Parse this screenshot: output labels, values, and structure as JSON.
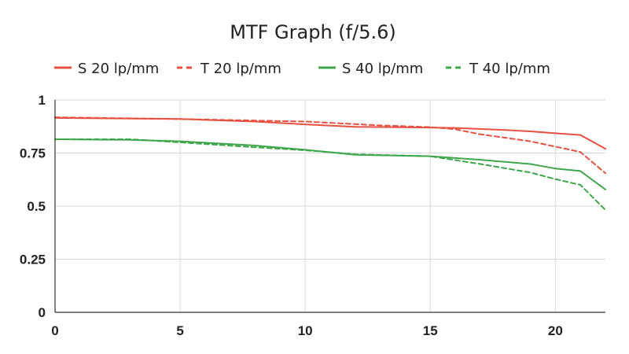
{
  "chart_data": {
    "type": "line",
    "title": "MTF Graph (f/5.6)",
    "xlabel": "",
    "ylabel": "",
    "xlim": [
      0,
      22
    ],
    "ylim": [
      0,
      1
    ],
    "x_ticks": [
      0,
      5,
      10,
      15,
      20
    ],
    "x_tick_labels": [
      "0",
      "5",
      "10",
      "15",
      "20"
    ],
    "y_ticks": [
      0,
      0.25,
      0.5,
      0.75,
      1
    ],
    "y_tick_labels": [
      "0",
      "0.25",
      "0.5",
      "0.75",
      "1"
    ],
    "grid": true,
    "legend_position": "top",
    "series": [
      {
        "name": "S 20 lp/mm",
        "color": "#e8503f",
        "dash": "solid",
        "points": [
          [
            0,
            0.915
          ],
          [
            5,
            0.91
          ],
          [
            8,
            0.898
          ],
          [
            10,
            0.885
          ],
          [
            12,
            0.873
          ],
          [
            15,
            0.87
          ],
          [
            16,
            0.868
          ],
          [
            18,
            0.858
          ],
          [
            19,
            0.852
          ],
          [
            20,
            0.843
          ],
          [
            21,
            0.835
          ],
          [
            22,
            0.77
          ]
        ]
      },
      {
        "name": "T 20 lp/mm",
        "color": "#e8503f",
        "dash": "dashed",
        "points": [
          [
            0,
            0.918
          ],
          [
            5,
            0.91
          ],
          [
            10,
            0.898
          ],
          [
            13,
            0.88
          ],
          [
            15,
            0.872
          ],
          [
            16,
            0.862
          ],
          [
            17,
            0.838
          ],
          [
            18,
            0.822
          ],
          [
            19,
            0.805
          ],
          [
            20,
            0.78
          ],
          [
            21,
            0.755
          ],
          [
            22,
            0.655
          ]
        ]
      },
      {
        "name": "S 40 lp/mm",
        "color": "#3ea74c",
        "dash": "solid",
        "points": [
          [
            0,
            0.815
          ],
          [
            3,
            0.812
          ],
          [
            5,
            0.805
          ],
          [
            8,
            0.785
          ],
          [
            10,
            0.765
          ],
          [
            12,
            0.742
          ],
          [
            15,
            0.735
          ],
          [
            17,
            0.718
          ],
          [
            19,
            0.698
          ],
          [
            20,
            0.677
          ],
          [
            21,
            0.665
          ],
          [
            22,
            0.578
          ]
        ]
      },
      {
        "name": "T 40 lp/mm",
        "color": "#3ea74c",
        "dash": "dashed",
        "points": [
          [
            0,
            0.815
          ],
          [
            3,
            0.815
          ],
          [
            5,
            0.8
          ],
          [
            8,
            0.777
          ],
          [
            10,
            0.763
          ],
          [
            12,
            0.744
          ],
          [
            15,
            0.735
          ],
          [
            17,
            0.698
          ],
          [
            19,
            0.658
          ],
          [
            20,
            0.627
          ],
          [
            21,
            0.6
          ],
          [
            22,
            0.482
          ]
        ]
      }
    ]
  }
}
